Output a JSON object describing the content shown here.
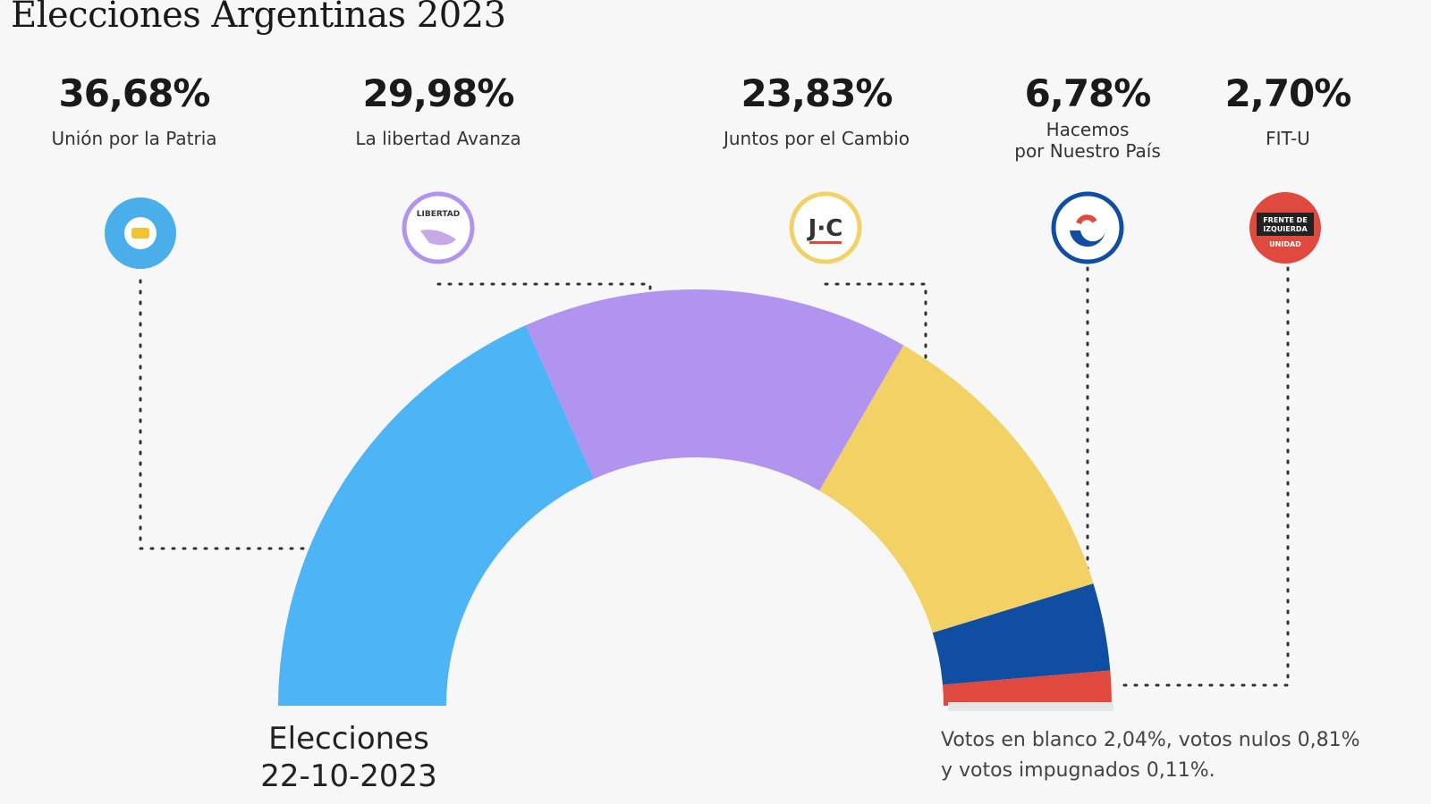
{
  "title": "Elecciones Argentinas 2023",
  "chart_data": {
    "type": "pie",
    "subtype": "semi-donut",
    "title": "Elecciones Argentinas 2023",
    "categories": [
      "Unión por la Patria",
      "La libertad Avanza",
      "Juntos por el Cambio",
      "Hacemos\npor Nuestro País",
      "FIT-U"
    ],
    "values": [
      36.68,
      29.98,
      23.83,
      6.78,
      2.7
    ],
    "labels": [
      "36,68%",
      "29,98%",
      "23,83%",
      "6,78%",
      "2,70%"
    ],
    "colors": [
      "#4db5f5",
      "#b194f0",
      "#f2d265",
      "#0f4ea3",
      "#e0493e"
    ],
    "logos": [
      "UxP",
      "La Libertad Avanza",
      "J·C",
      "Hacemos",
      "Frente de Izquierda Unidad"
    ],
    "center_label": "Elecciones\n22-10-2023",
    "note": "Votos en blanco 2,04%, votos nulos 0,81%\ny votos impugnados 0,11%."
  }
}
